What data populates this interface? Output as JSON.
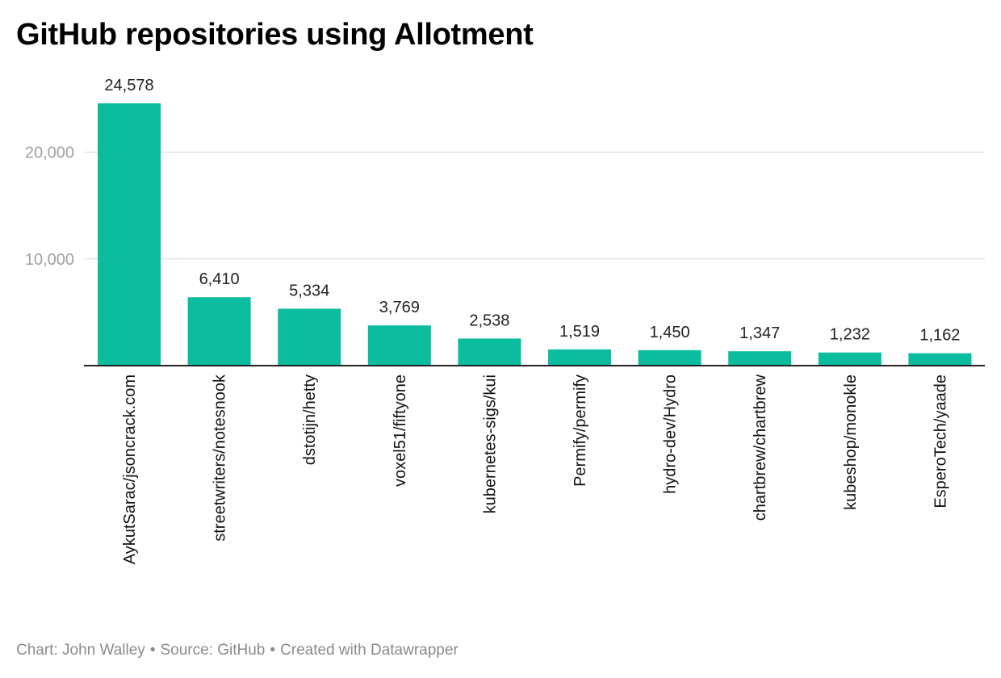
{
  "title": "GitHub repositories using Allotment",
  "footer": {
    "chart_by": "Chart: John Walley",
    "source": "Source: GitHub",
    "created_with": "Created with Datawrapper",
    "separator": "•"
  },
  "colors": {
    "bar": "#0bbd9f",
    "grid": "#e0e0e0",
    "baseline": "#222222",
    "tick_label": "#a0a0a0",
    "value_label": "#222222"
  },
  "chart_data": {
    "type": "bar",
    "title": "GitHub repositories using Allotment",
    "xlabel": "",
    "ylabel": "",
    "categories": [
      "AykutSarac/jsoncrack.com",
      "streetwriters/notesnook",
      "dstotijn/hetty",
      "voxel51/fiftyone",
      "kubernetes-sigs/kui",
      "Permify/permify",
      "hydro-dev/Hydro",
      "chartbrew/chartbrew",
      "kubeshop/monokle",
      "EsperoTech/yaade"
    ],
    "values": [
      24578,
      6410,
      5334,
      3769,
      2538,
      1519,
      1450,
      1347,
      1232,
      1162
    ],
    "value_labels": [
      "24,578",
      "6,410",
      "5,334",
      "3,769",
      "2,538",
      "1,519",
      "1,450",
      "1,347",
      "1,232",
      "1,162"
    ],
    "yticks": [
      10000,
      20000
    ],
    "ytick_labels": [
      "10,000",
      "20,000"
    ],
    "ylim": [
      0,
      24578
    ],
    "grid": true,
    "legend": "none"
  }
}
